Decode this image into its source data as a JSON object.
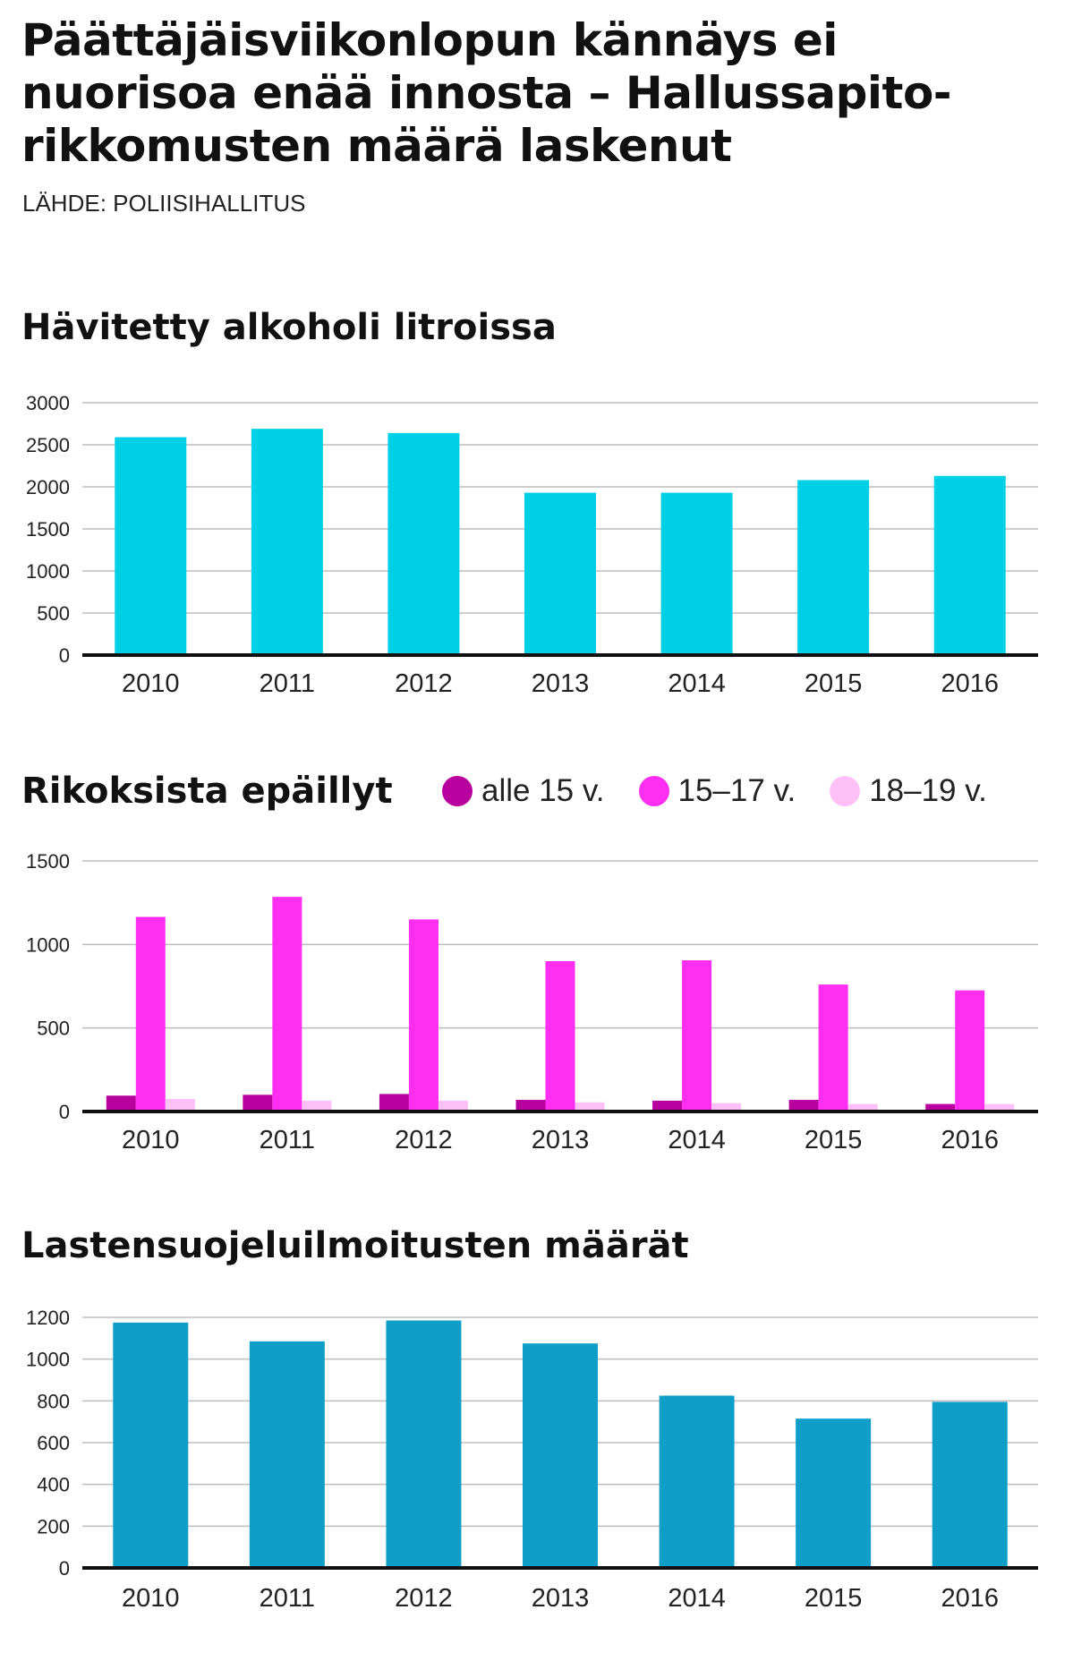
{
  "header": {
    "title": "Päättäjäisviikonlopun kännäys ei nuorisoa enää innosta – Hallussapito-rikkomusten määrä laskenut",
    "source": "LÄHDE: POLIISIHALLITUS"
  },
  "chart_data": [
    {
      "type": "bar",
      "title": "Hävitetty alkoholi litroissa",
      "categories": [
        "2010",
        "2011",
        "2012",
        "2013",
        "2014",
        "2015",
        "2016"
      ],
      "series": [
        {
          "values": [
            2590,
            2690,
            2640,
            1930,
            1930,
            2080,
            2130
          ],
          "color": "#00d0e5"
        }
      ],
      "ylim": [
        0,
        3000
      ],
      "yticks": [
        0,
        500,
        1000,
        1500,
        2000,
        2500,
        3000
      ],
      "grid": true
    },
    {
      "type": "bar",
      "title": "Rikoksista epäillyt",
      "legend_position": "top",
      "categories": [
        "2010",
        "2011",
        "2012",
        "2013",
        "2014",
        "2015",
        "2016"
      ],
      "series": [
        {
          "name": "alle 15 v.",
          "values": [
            95,
            100,
            105,
            70,
            65,
            70,
            45
          ],
          "color": "#b8009e"
        },
        {
          "name": "15–17 v.",
          "values": [
            1165,
            1285,
            1150,
            900,
            905,
            760,
            725
          ],
          "color": "#ff2ef0"
        },
        {
          "name": "18–19 v.",
          "values": [
            75,
            65,
            65,
            55,
            50,
            45,
            45
          ],
          "color": "#ffc0f7"
        }
      ],
      "ylim": [
        0,
        1500
      ],
      "yticks": [
        0,
        500,
        1000,
        1500
      ],
      "grid": true
    },
    {
      "type": "bar",
      "title": "Lastensuojeluilmoitusten määrät",
      "categories": [
        "2010",
        "2011",
        "2012",
        "2013",
        "2014",
        "2015",
        "2016"
      ],
      "series": [
        {
          "values": [
            1175,
            1085,
            1185,
            1075,
            825,
            715,
            795
          ],
          "color": "#0e9ec8"
        }
      ],
      "ylim": [
        0,
        1200
      ],
      "yticks": [
        0,
        200,
        400,
        600,
        800,
        1000,
        1200
      ],
      "grid": true
    }
  ]
}
